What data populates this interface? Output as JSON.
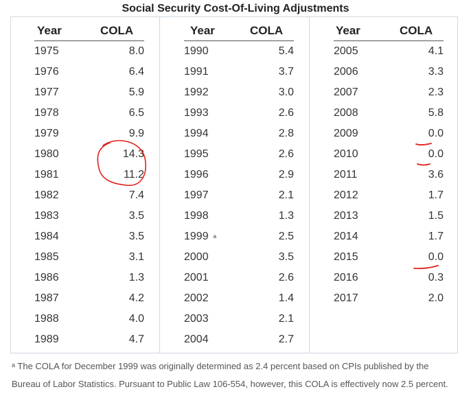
{
  "title": "Social Security Cost-Of-Living Adjustments",
  "columns": [
    {
      "year_header": "Year",
      "cola_header": "COLA",
      "rows": [
        {
          "year": "1975",
          "cola": "8.0"
        },
        {
          "year": "1976",
          "cola": "6.4"
        },
        {
          "year": "1977",
          "cola": "5.9"
        },
        {
          "year": "1978",
          "cola": "6.5"
        },
        {
          "year": "1979",
          "cola": "9.9"
        },
        {
          "year": "1980",
          "cola": "14.3"
        },
        {
          "year": "1981",
          "cola": "11.2"
        },
        {
          "year": "1982",
          "cola": "7.4"
        },
        {
          "year": "1983",
          "cola": "3.5"
        },
        {
          "year": "1984",
          "cola": "3.5"
        },
        {
          "year": "1985",
          "cola": "3.1"
        },
        {
          "year": "1986",
          "cola": "1.3"
        },
        {
          "year": "1987",
          "cola": "4.2"
        },
        {
          "year": "1988",
          "cola": "4.0"
        },
        {
          "year": "1989",
          "cola": "4.7"
        }
      ]
    },
    {
      "year_header": "Year",
      "cola_header": "COLA",
      "rows": [
        {
          "year": "1990",
          "cola": "5.4"
        },
        {
          "year": "1991",
          "cola": "3.7"
        },
        {
          "year": "1992",
          "cola": "3.0"
        },
        {
          "year": "1993",
          "cola": "2.6"
        },
        {
          "year": "1994",
          "cola": "2.8"
        },
        {
          "year": "1995",
          "cola": "2.6"
        },
        {
          "year": "1996",
          "cola": "2.9"
        },
        {
          "year": "1997",
          "cola": "2.1"
        },
        {
          "year": "1998",
          "cola": "1.3"
        },
        {
          "year": "1999",
          "cola": "2.5",
          "note": "a"
        },
        {
          "year": "2000",
          "cola": "3.5"
        },
        {
          "year": "2001",
          "cola": "2.6"
        },
        {
          "year": "2002",
          "cola": "1.4"
        },
        {
          "year": "2003",
          "cola": "2.1"
        },
        {
          "year": "2004",
          "cola": "2.7"
        }
      ]
    },
    {
      "year_header": "Year",
      "cola_header": "COLA",
      "rows": [
        {
          "year": "2005",
          "cola": "4.1"
        },
        {
          "year": "2006",
          "cola": "3.3"
        },
        {
          "year": "2007",
          "cola": "2.3"
        },
        {
          "year": "2008",
          "cola": "5.8"
        },
        {
          "year": "2009",
          "cola": "0.0"
        },
        {
          "year": "2010",
          "cola": "0.0"
        },
        {
          "year": "2011",
          "cola": "3.6"
        },
        {
          "year": "2012",
          "cola": "1.7"
        },
        {
          "year": "2013",
          "cola": "1.5"
        },
        {
          "year": "2014",
          "cola": "1.7"
        },
        {
          "year": "2015",
          "cola": "0.0"
        },
        {
          "year": "2016",
          "cola": "0.3"
        },
        {
          "year": "2017",
          "cola": "2.0"
        }
      ]
    }
  ],
  "footnote": {
    "marker": "a",
    "text": " The COLA for December 1999 was originally determined as 2.4 percent based on CPIs published by the Bureau of Labor Statistics. Pursuant to Public Law 106-554, however, this COLA is effectively now 2.5 percent."
  },
  "annotations": {
    "ink_color": "#e0201c",
    "circled_years": [
      "1980",
      "1981"
    ],
    "underlined_years": [
      "2009",
      "2010",
      "2015"
    ]
  }
}
